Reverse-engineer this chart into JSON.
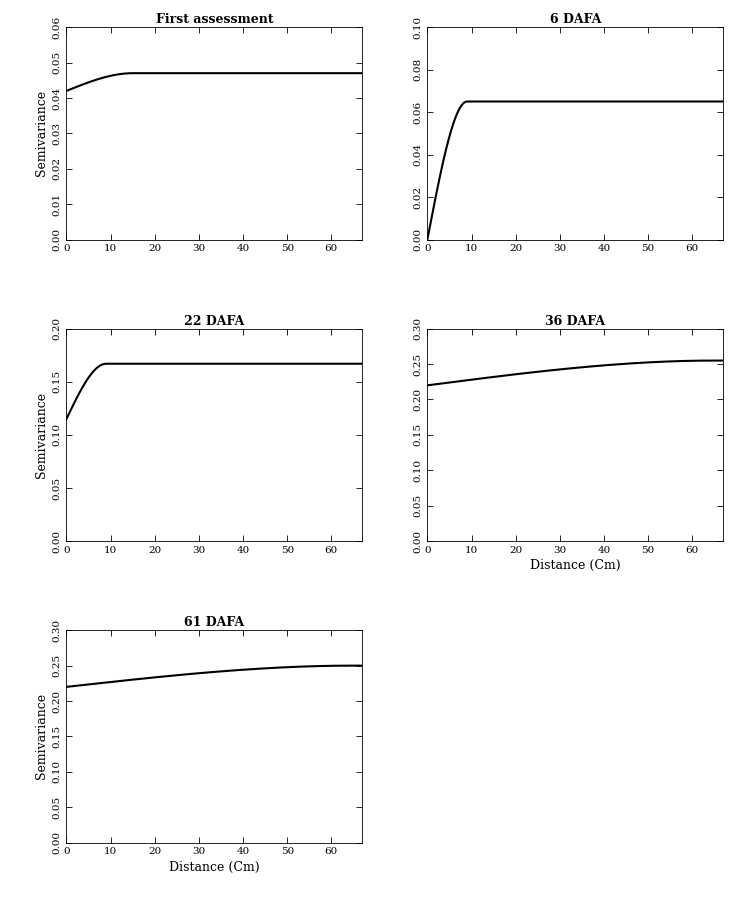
{
  "panels": [
    {
      "title": "First assessment",
      "nugget": 0.042,
      "sill": 0.047,
      "range": 15,
      "ylim": [
        0.0,
        0.06
      ],
      "yticks": [
        0.0,
        0.01,
        0.02,
        0.03,
        0.04,
        0.05,
        0.06
      ],
      "ylabel": "Semivariance",
      "show_xlabel": false
    },
    {
      "title": "6 DAFA",
      "nugget": 0.0,
      "sill": 0.065,
      "range": 9,
      "ylim": [
        0.0,
        0.1
      ],
      "yticks": [
        0.0,
        0.02,
        0.04,
        0.06,
        0.08,
        0.1
      ],
      "ylabel": "",
      "show_xlabel": false
    },
    {
      "title": "22 DAFA",
      "nugget": 0.115,
      "sill": 0.167,
      "range": 9,
      "ylim": [
        0.0,
        0.2
      ],
      "yticks": [
        0.0,
        0.05,
        0.1,
        0.15,
        0.2
      ],
      "ylabel": "Semivariance",
      "show_xlabel": false
    },
    {
      "title": "36 DAFA",
      "nugget": 0.22,
      "sill": 0.255,
      "range": 65,
      "ylim": [
        0.0,
        0.3
      ],
      "yticks": [
        0.0,
        0.05,
        0.1,
        0.15,
        0.2,
        0.25,
        0.3
      ],
      "ylabel": "",
      "show_xlabel": true
    },
    {
      "title": "61 DAFA",
      "nugget": 0.22,
      "sill": 0.25,
      "range": 65,
      "ylim": [
        0.0,
        0.3
      ],
      "yticks": [
        0.0,
        0.05,
        0.1,
        0.15,
        0.2,
        0.25,
        0.3
      ],
      "ylabel": "Semivariance",
      "show_xlabel": true
    }
  ],
  "xlim": [
    0,
    67
  ],
  "xticks": [
    0,
    10,
    20,
    30,
    40,
    50,
    60
  ],
  "xlabel": "Distance (Cm)",
  "line_color": "#000000",
  "line_width": 1.5,
  "bg_color": "#ffffff",
  "title_fontsize": 9,
  "label_fontsize": 9,
  "tick_fontsize": 7.5
}
